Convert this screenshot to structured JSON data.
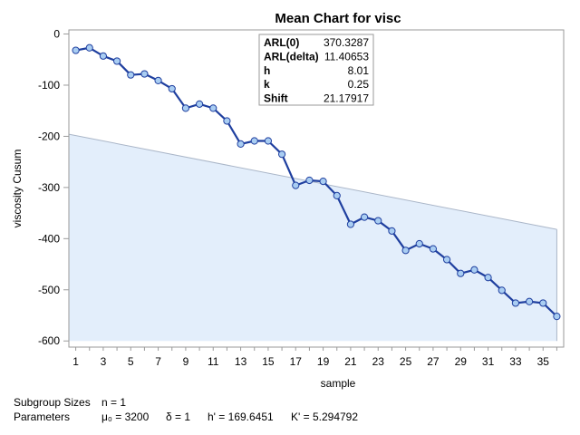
{
  "chart_data": {
    "type": "line",
    "title": "Mean Chart for visc",
    "xlabel": "sample",
    "ylabel": "viscosity Cusum",
    "xlim": [
      0.5,
      36.5
    ],
    "ylim": [
      -612,
      8
    ],
    "x_ticks": [
      1,
      3,
      5,
      7,
      9,
      11,
      13,
      15,
      17,
      19,
      21,
      23,
      25,
      27,
      29,
      31,
      33,
      35
    ],
    "y_ticks": [
      0,
      -100,
      -200,
      -300,
      -400,
      -500,
      -600
    ],
    "grid": false,
    "legend": "none",
    "colors": {
      "line": "#1f3f9f",
      "marker_fill": "#a9cdf2",
      "marker_stroke": "#1f3f9f",
      "band_fill": "#e3eefb",
      "band_stroke": "#aab6c8",
      "frame": "#9a9a9a"
    },
    "series": [
      {
        "x": [
          1,
          2,
          3,
          4,
          5,
          6,
          7,
          8,
          9,
          10,
          11,
          12,
          13,
          14,
          15,
          16,
          17,
          18,
          19,
          20,
          21,
          22,
          23,
          24,
          25,
          26,
          27,
          28,
          29,
          30,
          31,
          32,
          33,
          34,
          35,
          36
        ],
        "values": [
          -32,
          -27,
          -43,
          -53,
          -80,
          -78,
          -91,
          -107,
          -145,
          -137,
          -145,
          -170,
          -215,
          -209,
          -209,
          -235,
          -296,
          -286,
          -288,
          -316,
          -372,
          -358,
          -365,
          -385,
          -423,
          -410,
          -420,
          -441,
          -468,
          -461,
          -476,
          -501,
          -526,
          -523,
          -526,
          -552
        ]
      }
    ],
    "mask": {
      "start": {
        "x": 0.5,
        "y": -196
      },
      "end": {
        "x": 36,
        "y": -382
      },
      "floor": -600
    },
    "stats": [
      {
        "label": "ARL(0)",
        "value": "370.3287"
      },
      {
        "label": "ARL(delta)",
        "value": "11.40653"
      },
      {
        "label": "h",
        "value": "8.01"
      },
      {
        "label": "k",
        "value": "0.25"
      },
      {
        "label": "Shift",
        "value": "21.17917"
      }
    ]
  },
  "footer": {
    "subgroup_label": "Subgroup Sizes",
    "subgroup_value": "n = 1",
    "params_label": "Parameters",
    "mu": "μ₀ = 3200",
    "delta": "δ = 1",
    "h_prime": "h' = 169.6451",
    "k_prime": "K' = 5.294792"
  }
}
